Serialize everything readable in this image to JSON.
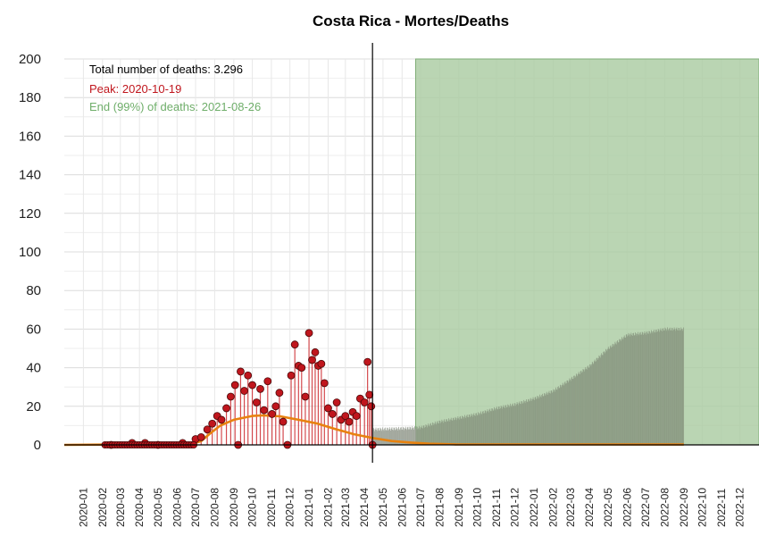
{
  "chart_data": {
    "type": "bar",
    "title": "Costa Rica - Mortes/Deaths",
    "xlabel": "",
    "ylabel": "",
    "ylim": [
      0,
      200
    ],
    "y_ticks": [
      0,
      20,
      40,
      60,
      80,
      100,
      120,
      140,
      160,
      180,
      200
    ],
    "x_tick_labels": [
      "2020-01",
      "2020-02",
      "2020-03",
      "2020-04",
      "2020-05",
      "2020-06",
      "2020-07",
      "2020-08",
      "2020-09",
      "2020-10",
      "2020-11",
      "2020-12",
      "2021-01",
      "2021-02",
      "2021-03",
      "2021-04",
      "2021-05",
      "2021-06",
      "2021-07",
      "2021-08",
      "2021-09",
      "2021-10",
      "2021-11",
      "2021-12",
      "2022-01",
      "2022-02",
      "2022-03",
      "2022-04",
      "2022-05",
      "2022-06",
      "2022-07",
      "2022-08",
      "2022-09",
      "2022-10",
      "2022-11",
      "2022-12"
    ],
    "x_range": [
      "2019-12-01",
      "2023-01-01"
    ],
    "grid": true,
    "annotations": {
      "total": "Total number of deaths: 3.296",
      "peak": "Peak: 2020-10-19",
      "end": "End (99%) of deaths: 2021-08-26"
    },
    "vertical_line_date": "2021-04-14",
    "shaded_region": {
      "start": "2021-06-23",
      "end": "2023-01-01",
      "y": 200
    },
    "observed_points": [
      {
        "date": "2020-02-15",
        "value": 0
      },
      {
        "date": "2020-03-20",
        "value": 1
      },
      {
        "date": "2020-04-10",
        "value": 1
      },
      {
        "date": "2020-05-01",
        "value": 0
      },
      {
        "date": "2020-06-10",
        "value": 1
      },
      {
        "date": "2020-07-01",
        "value": 3
      },
      {
        "date": "2020-07-10",
        "value": 4
      },
      {
        "date": "2020-07-20",
        "value": 8
      },
      {
        "date": "2020-07-28",
        "value": 11
      },
      {
        "date": "2020-08-05",
        "value": 15
      },
      {
        "date": "2020-08-12",
        "value": 13
      },
      {
        "date": "2020-08-20",
        "value": 19
      },
      {
        "date": "2020-08-27",
        "value": 25
      },
      {
        "date": "2020-09-03",
        "value": 31
      },
      {
        "date": "2020-09-08",
        "value": 0
      },
      {
        "date": "2020-09-12",
        "value": 38
      },
      {
        "date": "2020-09-18",
        "value": 28
      },
      {
        "date": "2020-09-24",
        "value": 36
      },
      {
        "date": "2020-10-01",
        "value": 31
      },
      {
        "date": "2020-10-08",
        "value": 22
      },
      {
        "date": "2020-10-14",
        "value": 29
      },
      {
        "date": "2020-10-20",
        "value": 18
      },
      {
        "date": "2020-10-26",
        "value": 33
      },
      {
        "date": "2020-11-02",
        "value": 16
      },
      {
        "date": "2020-11-08",
        "value": 20
      },
      {
        "date": "2020-11-14",
        "value": 27
      },
      {
        "date": "2020-11-20",
        "value": 12
      },
      {
        "date": "2020-11-27",
        "value": 0
      },
      {
        "date": "2020-12-03",
        "value": 36
      },
      {
        "date": "2020-12-09",
        "value": 52
      },
      {
        "date": "2020-12-15",
        "value": 41
      },
      {
        "date": "2020-12-20",
        "value": 40
      },
      {
        "date": "2020-12-26",
        "value": 25
      },
      {
        "date": "2021-01-01",
        "value": 58
      },
      {
        "date": "2021-01-06",
        "value": 44
      },
      {
        "date": "2021-01-11",
        "value": 48
      },
      {
        "date": "2021-01-16",
        "value": 41
      },
      {
        "date": "2021-01-21",
        "value": 42
      },
      {
        "date": "2021-01-26",
        "value": 32
      },
      {
        "date": "2021-02-01",
        "value": 19
      },
      {
        "date": "2021-02-08",
        "value": 16
      },
      {
        "date": "2021-02-15",
        "value": 22
      },
      {
        "date": "2021-02-22",
        "value": 13
      },
      {
        "date": "2021-03-01",
        "value": 15
      },
      {
        "date": "2021-03-07",
        "value": 12
      },
      {
        "date": "2021-03-13",
        "value": 17
      },
      {
        "date": "2021-03-19",
        "value": 15
      },
      {
        "date": "2021-03-25",
        "value": 24
      },
      {
        "date": "2021-04-01",
        "value": 22
      },
      {
        "date": "2021-04-06",
        "value": 43
      },
      {
        "date": "2021-04-09",
        "value": 26
      },
      {
        "date": "2021-04-12",
        "value": 20
      },
      {
        "date": "2021-04-14",
        "value": 0
      }
    ],
    "fitted_curve": [
      {
        "date": "2019-12-01",
        "value": 0
      },
      {
        "date": "2020-06-25",
        "value": 0.5
      },
      {
        "date": "2020-07-10",
        "value": 2
      },
      {
        "date": "2020-07-25",
        "value": 6
      },
      {
        "date": "2020-08-10",
        "value": 10
      },
      {
        "date": "2020-09-01",
        "value": 13
      },
      {
        "date": "2020-10-01",
        "value": 15
      },
      {
        "date": "2020-10-19",
        "value": 15.3
      },
      {
        "date": "2020-11-15",
        "value": 14.8
      },
      {
        "date": "2020-12-15",
        "value": 13
      },
      {
        "date": "2021-01-15",
        "value": 11
      },
      {
        "date": "2021-02-15",
        "value": 8
      },
      {
        "date": "2021-03-15",
        "value": 5.5
      },
      {
        "date": "2021-04-15",
        "value": 3.5
      },
      {
        "date": "2021-05-15",
        "value": 2
      },
      {
        "date": "2021-06-15",
        "value": 1.2
      },
      {
        "date": "2021-07-15",
        "value": 0.6
      },
      {
        "date": "2021-08-26",
        "value": 0.3
      },
      {
        "date": "2022-09-01",
        "value": 0.2
      }
    ],
    "projection_bars": [
      {
        "date": "2021-04-15",
        "value": 8
      },
      {
        "date": "2021-06-01",
        "value": 8.5
      },
      {
        "date": "2021-07-01",
        "value": 9
      },
      {
        "date": "2021-08-01",
        "value": 12
      },
      {
        "date": "2021-09-01",
        "value": 14
      },
      {
        "date": "2021-10-01",
        "value": 16
      },
      {
        "date": "2021-11-01",
        "value": 19
      },
      {
        "date": "2021-12-01",
        "value": 21
      },
      {
        "date": "2022-01-01",
        "value": 24
      },
      {
        "date": "2022-02-01",
        "value": 28
      },
      {
        "date": "2022-03-01",
        "value": 34
      },
      {
        "date": "2022-04-01",
        "value": 41
      },
      {
        "date": "2022-05-01",
        "value": 50
      },
      {
        "date": "2022-06-01",
        "value": 57
      },
      {
        "date": "2022-07-01",
        "value": 58
      },
      {
        "date": "2022-08-01",
        "value": 60
      },
      {
        "date": "2022-08-31",
        "value": 60
      }
    ],
    "colors": {
      "points": "#c0161d",
      "point_edge": "#4a0a0a",
      "stems": "#cc2a2f",
      "curve": "#e8820f",
      "projection": "#9fa59a",
      "shade": "#a9cba0",
      "annot_total": "#000000",
      "annot_peak": "#c0161d",
      "annot_end": "#6fae6a"
    }
  }
}
